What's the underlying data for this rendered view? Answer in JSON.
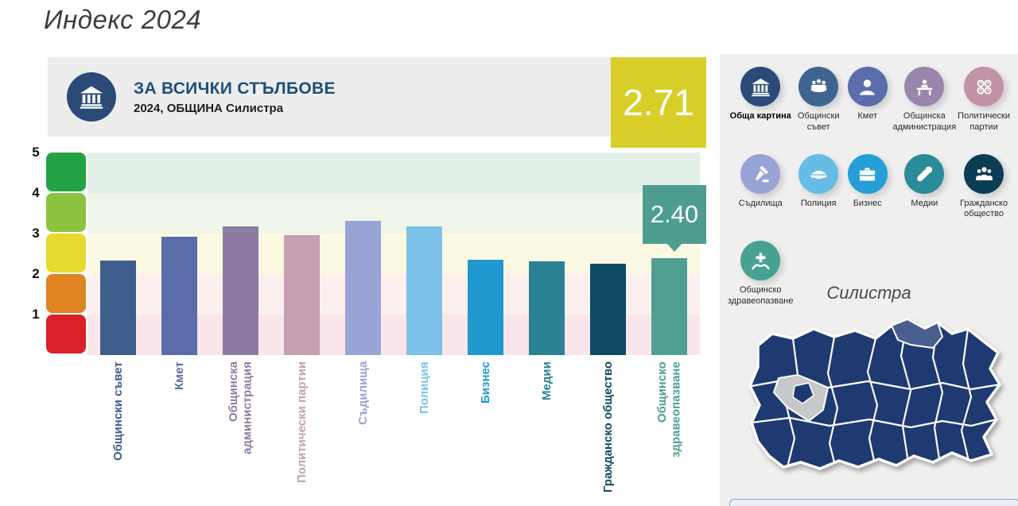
{
  "page": {
    "title": "Индекс 2024"
  },
  "header": {
    "icon": "bank-icon",
    "title": "ЗА ВСИЧКИ СТЪЛБОВЕ",
    "subtitle": "2024, ОБЩИНА Силистра",
    "score": "2.71",
    "score_color": "#d8cf2b"
  },
  "chart_data": {
    "type": "bar",
    "title": "ЗА ВСИЧКИ СТЪЛБОВЕ",
    "subtitle": "2024, ОБЩИНА Силистра",
    "overall_score": 2.71,
    "ylim": [
      0,
      5
    ],
    "yticks": [
      5,
      4,
      3,
      2,
      1
    ],
    "grid": "colored horizontal bands, legend off",
    "categories": [
      "Общински съвет",
      "Кмет",
      "Общинска администрация",
      "Политически партии",
      "Съдилища",
      "Полиция",
      "Бизнес",
      "Медии",
      "Гражданско общество",
      "Общинско здравеопазване"
    ],
    "values": [
      2.33,
      2.92,
      3.18,
      2.96,
      3.31,
      3.17,
      2.36,
      2.31,
      2.26,
      2.4
    ],
    "bar_colors": [
      "#3d5d8d",
      "#5b6caa",
      "#8e7ba3",
      "#c69fb2",
      "#99a4d6",
      "#7cc2e8",
      "#2097cf",
      "#2a8191",
      "#0e4a61",
      "#4f9f92"
    ],
    "highlight_callout": {
      "index": 9,
      "label": "2.40",
      "color": "#4d9e91"
    },
    "scale_block_colors": [
      "#24a346",
      "#8dc241",
      "#e6da2e",
      "#e08522",
      "#da2129"
    ],
    "band_colors": [
      "#e2f0e8",
      "#eff5e8",
      "#fcf9e3",
      "#fcf0ee",
      "#fae6ea"
    ]
  },
  "sidebar": {
    "items": [
      {
        "label": "Обща картина",
        "icon": "bank-icon",
        "color": "#2c4a78",
        "selected": true
      },
      {
        "label": "Общински съвет",
        "icon": "council-icon",
        "color": "#3f6492",
        "selected": false
      },
      {
        "label": "Кмет",
        "icon": "person-icon",
        "color": "#5a6cab",
        "selected": false
      },
      {
        "label": "Общинска администрация",
        "icon": "admin-icon",
        "color": "#9a86ac",
        "selected": false
      },
      {
        "label": "Политически партии",
        "icon": "parties-icon",
        "color": "#c293a6",
        "selected": false
      },
      {
        "label": "Съдилища",
        "icon": "gavel-icon",
        "color": "#98a3d6",
        "selected": false
      },
      {
        "label": "Полиция",
        "icon": "police-cap-icon",
        "color": "#66bce5",
        "selected": false
      },
      {
        "label": "Бизнес",
        "icon": "briefcase-icon",
        "color": "#279fd6",
        "selected": false
      },
      {
        "label": "Медии",
        "icon": "microphone-icon",
        "color": "#2b8b98",
        "selected": false
      },
      {
        "label": "Гражданско общество",
        "icon": "people-group-icon",
        "color": "#0c3d55",
        "selected": false
      },
      {
        "label": "Общинско здравеопазване",
        "icon": "health-hands-icon",
        "color": "#47a293",
        "selected": false
      }
    ]
  },
  "map": {
    "title": "Силистра",
    "province_color": "#1f3a70",
    "highlight_color": "#4a5f8f",
    "inactive_color": "#c6c8ca"
  }
}
